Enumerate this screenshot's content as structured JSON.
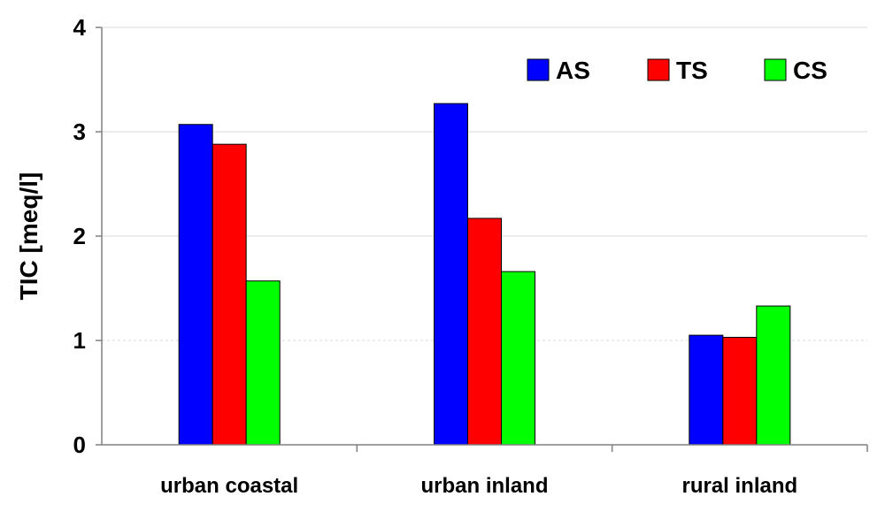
{
  "chart_data": {
    "type": "bar",
    "title": "",
    "xlabel": "",
    "ylabel": "TIC [meq/l]",
    "ylim": [
      0,
      4
    ],
    "yticks": [
      0,
      1,
      2,
      3,
      4
    ],
    "categories": [
      "urban coastal",
      "urban inland",
      "rural inland"
    ],
    "series": [
      {
        "name": "AS",
        "color": "#0000ff",
        "values": [
          3.07,
          3.27,
          1.05
        ]
      },
      {
        "name": "TS",
        "color": "#ff0000",
        "values": [
          2.88,
          2.17,
          1.03
        ]
      },
      {
        "name": "CS",
        "color": "#00ff00",
        "values": [
          1.57,
          1.66,
          1.33
        ]
      }
    ],
    "grid": true,
    "legend_position": "top-right"
  }
}
